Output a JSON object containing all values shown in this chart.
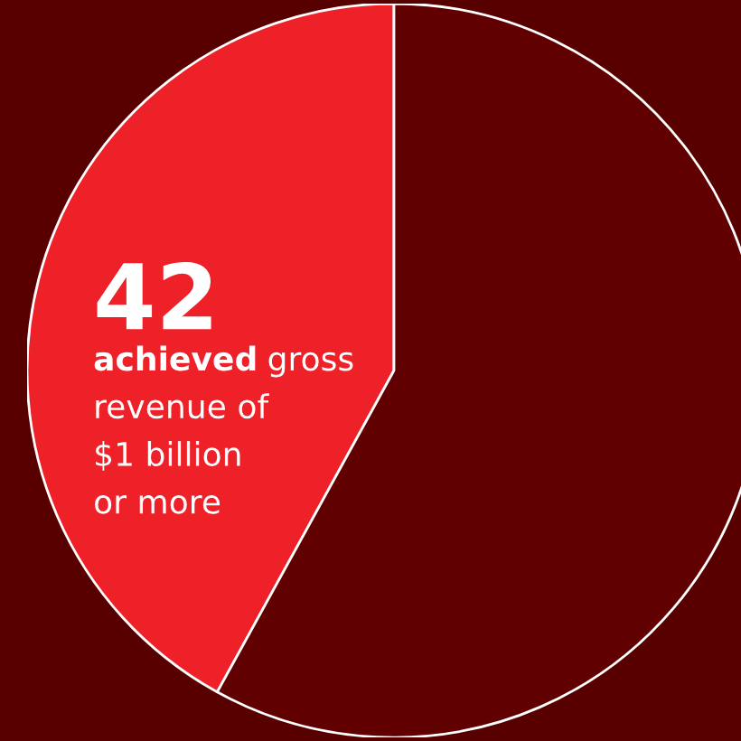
{
  "chart_data": {
    "type": "pie",
    "categories": [
      "achieved gross\nrevenue of\n$1 billion\nor more",
      null
    ],
    "values": [
      42,
      58
    ],
    "colors": [
      "#ee2028",
      "#600000"
    ],
    "value_labels": [
      "42",
      null
    ],
    "legend": false
  }
}
